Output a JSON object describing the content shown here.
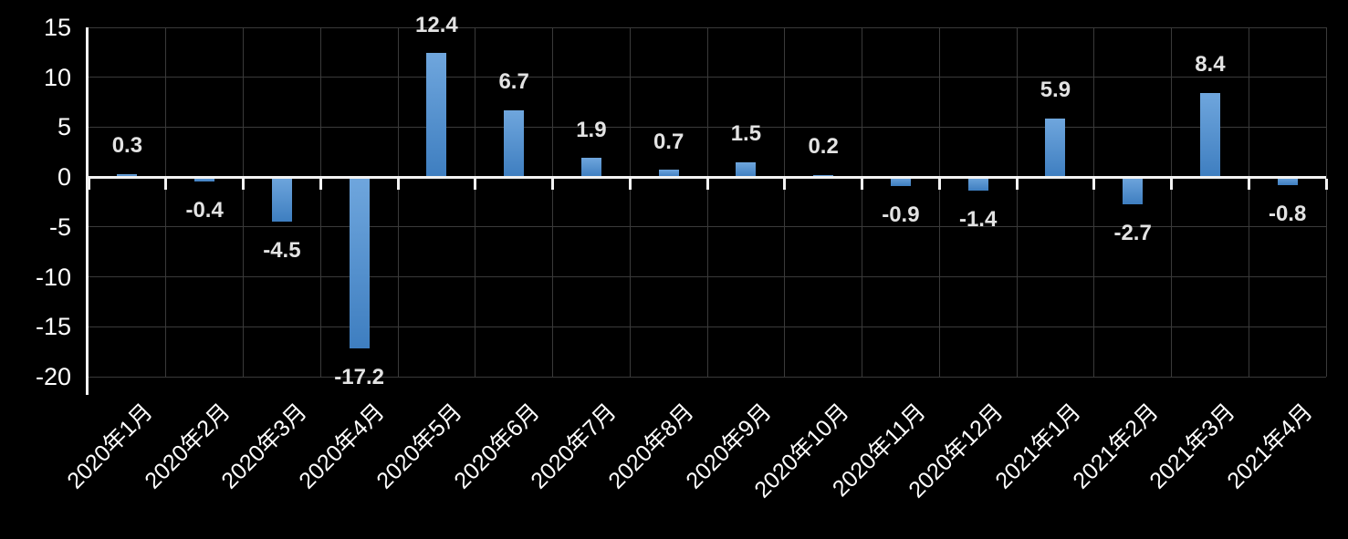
{
  "chart_data": {
    "type": "bar",
    "categories": [
      "2020年1月",
      "2020年2月",
      "2020年3月",
      "2020年4月",
      "2020年5月",
      "2020年6月",
      "2020年7月",
      "2020年8月",
      "2020年9月",
      "2020年10月",
      "2020年11月",
      "2020年12月",
      "2021年1月",
      "2021年2月",
      "2021年3月",
      "2021年4月"
    ],
    "values": [
      0.3,
      -0.4,
      -4.5,
      -17.2,
      12.4,
      6.7,
      1.9,
      0.7,
      1.5,
      0.2,
      -0.9,
      -1.4,
      5.9,
      -2.7,
      8.4,
      -0.8
    ],
    "y_ticks": [
      15,
      10,
      5,
      0,
      -5,
      -10,
      -15,
      -20
    ],
    "ylim": [
      -20,
      15
    ],
    "xlabel": "",
    "ylabel": "",
    "grid": true,
    "legend": "none",
    "data_labels": "outside-end",
    "colors": {
      "background": "#000000",
      "bar_gradient_top": "#6FA6DD",
      "bar_gradient_bottom": "#3E7EC0",
      "gridline": "#3A3A3A",
      "axis_line": "#F2F2F2",
      "data_label": "#E3E3E3",
      "tick_label": "#FFFFFF"
    }
  }
}
